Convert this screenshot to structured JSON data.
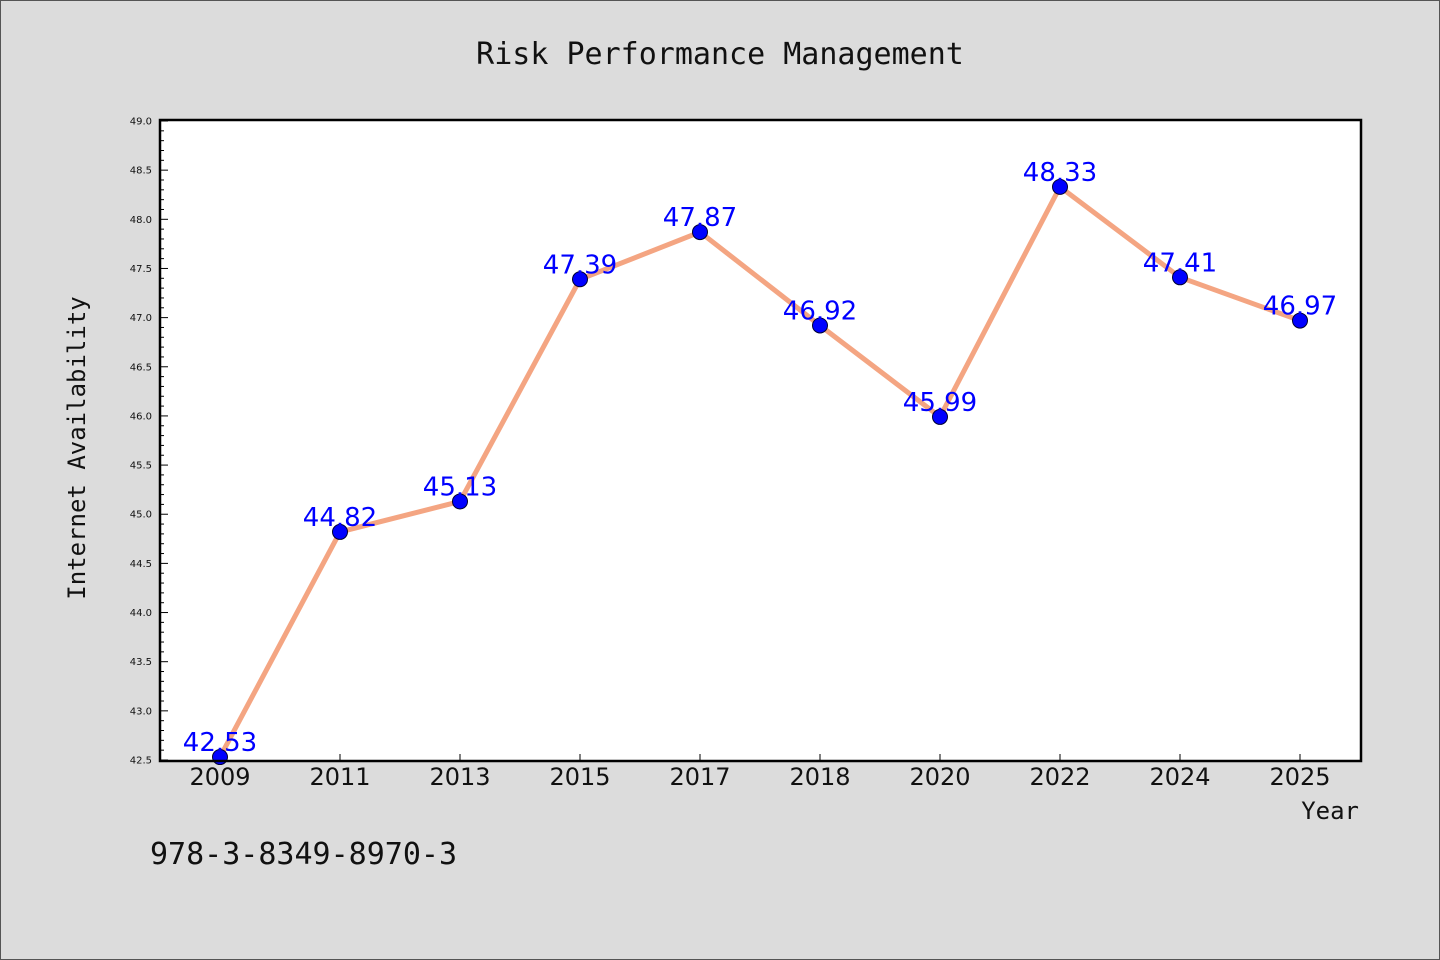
{
  "chart_data": {
    "type": "line",
    "title": "Risk Performance Management",
    "xlabel": "Year",
    "ylabel": "Internet Availability",
    "categories": [
      "2009",
      "2011",
      "2013",
      "2015",
      "2017",
      "2018",
      "2020",
      "2022",
      "2024",
      "2025"
    ],
    "series": [
      {
        "values": [
          42.53,
          44.82,
          45.13,
          47.39,
          47.87,
          46.92,
          45.99,
          48.33,
          47.41,
          46.97
        ],
        "line_color": "#f4a582",
        "marker_color": "#0000ff"
      }
    ],
    "data_labels": [
      "42.53",
      "44.82",
      "45.13",
      "47.39",
      "47.87",
      "46.92",
      "45.99",
      "48.33",
      "47.41",
      "46.97"
    ],
    "ylim": [
      42.5,
      49.0
    ],
    "yticks": [
      "42.5",
      "43.0",
      "43.5",
      "44.0",
      "44.5",
      "45.0",
      "45.5",
      "46.0",
      "46.5",
      "47.0",
      "47.5",
      "48.0",
      "48.5",
      "49.0"
    ],
    "grid": false,
    "legend": "none"
  },
  "footer": {
    "isbn": "978-3-8349-8970-3"
  },
  "colors": {
    "background": "#dcdcdc",
    "plot_background": "#ffffff",
    "line": "#f4a582",
    "marker": "#0000ff",
    "label": "#0000ff"
  }
}
